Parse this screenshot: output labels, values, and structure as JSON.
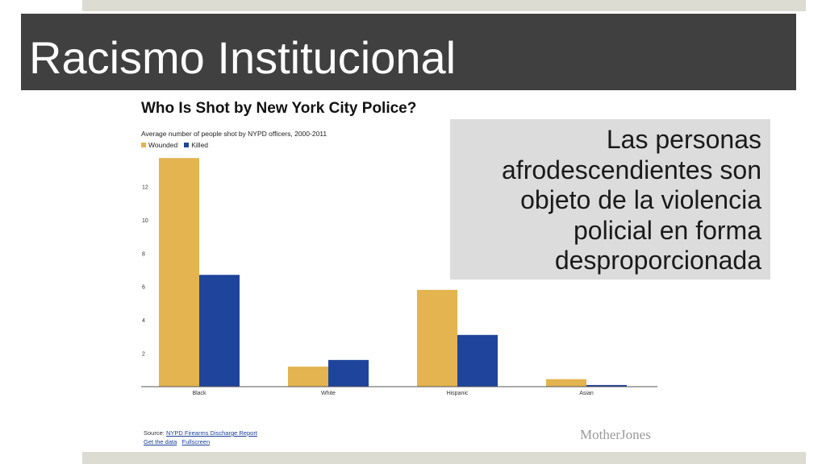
{
  "slide": {
    "title": "Racismo Institucional",
    "callout": "Las personas afrodescendientes son objeto de la violencia policial en forma desproporcionada"
  },
  "colors": {
    "title_bar": "#404040",
    "band": "#dcdcd2",
    "callout_bg": "#dcdcdc",
    "wounded": "#e3b44f",
    "killed": "#1f449b"
  },
  "chart_data": {
    "type": "bar",
    "title": "Who Is Shot by New York City Police?",
    "subtitle": "Average number of people shot by NYPD officers, 2000-2011",
    "categories": [
      "Black",
      "White",
      "Hispanic",
      "Asian"
    ],
    "series": [
      {
        "name": "Wounded",
        "color": "#e3b44f",
        "values": [
          13.7,
          1.2,
          5.8,
          0.45
        ]
      },
      {
        "name": "Killed",
        "color": "#1f449b",
        "values": [
          6.7,
          1.6,
          3.1,
          0.1
        ]
      }
    ],
    "yticks": [
      "2",
      "4",
      "6",
      "8",
      "10",
      "12"
    ],
    "ylim": [
      0,
      14
    ],
    "legend": "top-left",
    "grid": false
  },
  "footer": {
    "source_label": "Source:",
    "source_link": "NYPD Firearms Discharge Report",
    "get_data": "Get the data",
    "fullscreen": "Fullscreen",
    "brand": "MotherJones"
  }
}
